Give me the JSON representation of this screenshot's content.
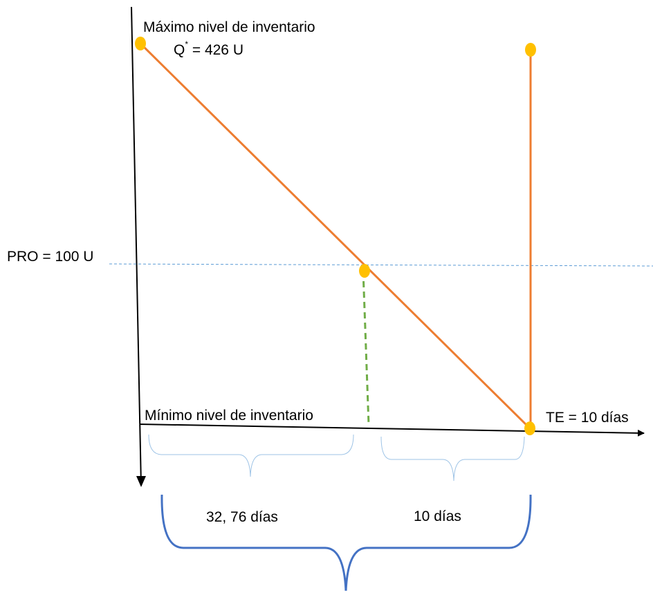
{
  "labels": {
    "max_level": "Máximo nivel de inventario",
    "q_star_prefix": "Q",
    "q_star_sup": "*",
    "q_star_value": " = 426 U",
    "reorder_point": "PRO = 100 U",
    "min_level": "Mínimo nivel de inventario",
    "lead_time": "TE = 10 días",
    "interval_1": "32, 76 días",
    "interval_2": "10 días"
  },
  "colors": {
    "inventory_line": "#ED7D31",
    "point": "#FFC000",
    "reorder_dashed": "#5B9BD5",
    "lead_dashed": "#70AD47",
    "brace_small": "#9DC3E6",
    "brace_large": "#4472C4",
    "axis": "#000000"
  }
}
